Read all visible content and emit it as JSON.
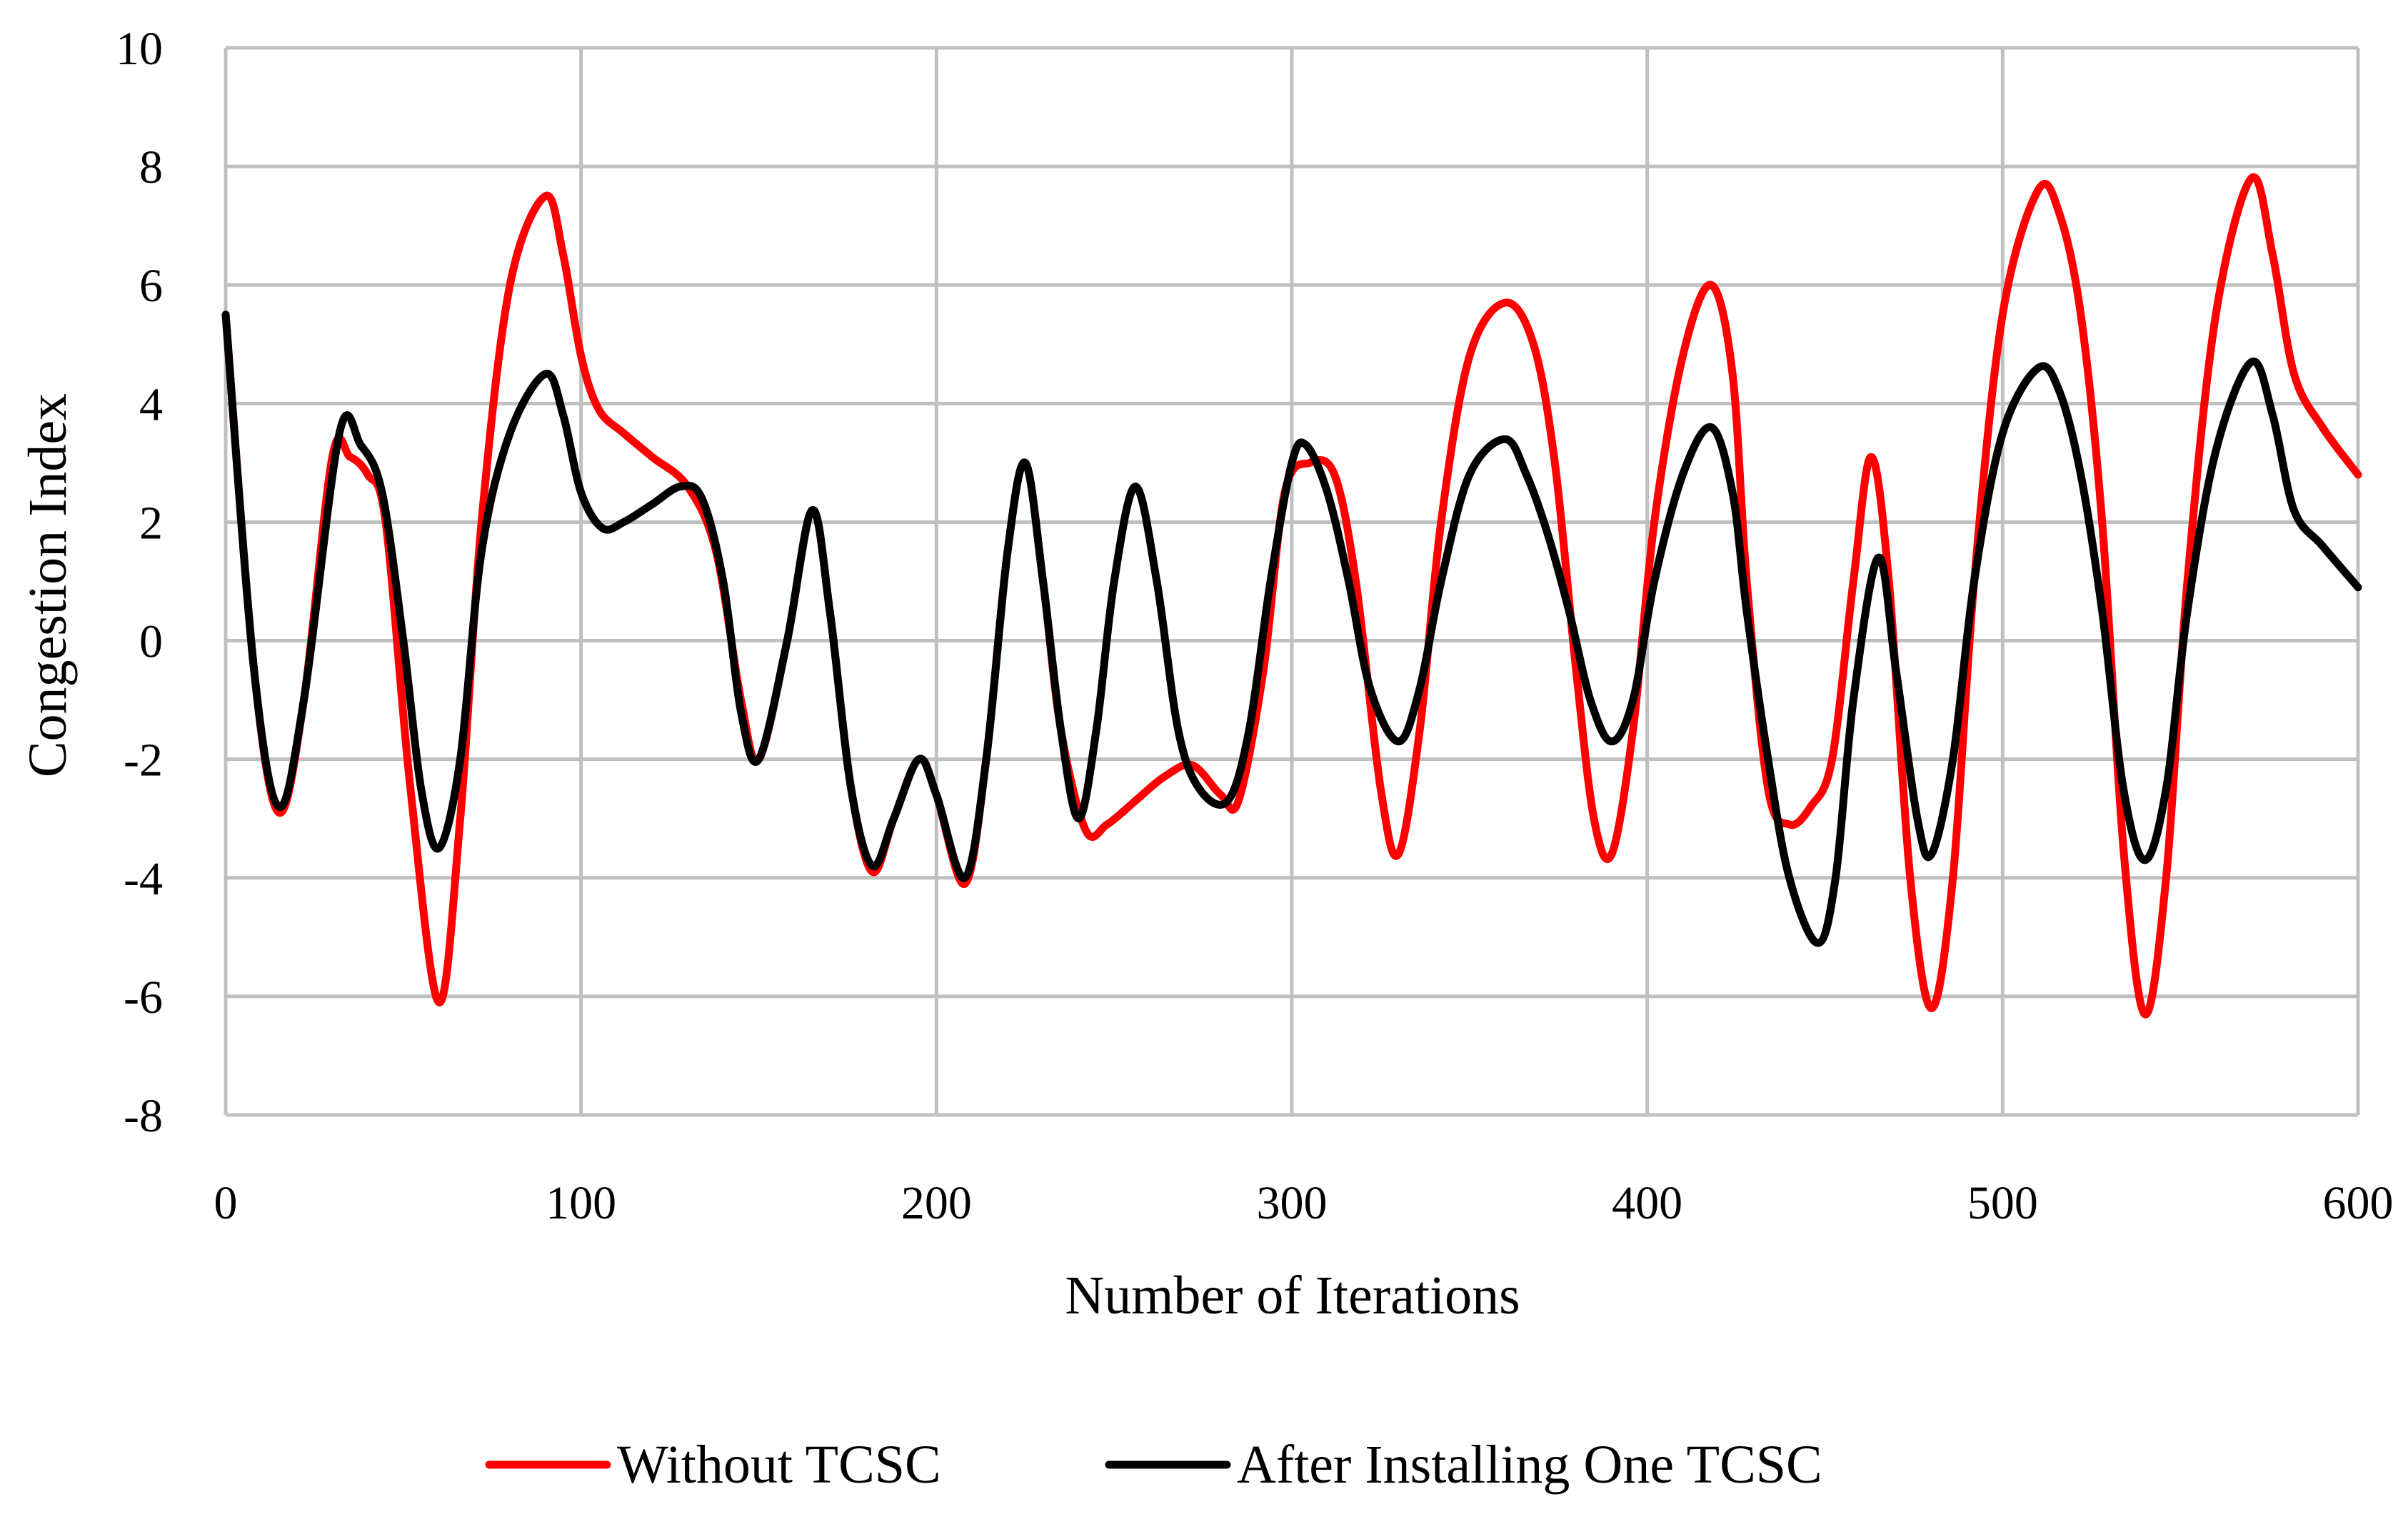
{
  "chart_data": {
    "type": "line",
    "title": "",
    "xlabel": "Number of Iterations",
    "ylabel": "Congestion Index",
    "xlim": [
      0,
      600
    ],
    "ylim": [
      -8,
      10
    ],
    "x_ticks": [
      0,
      100,
      200,
      300,
      400,
      500,
      600
    ],
    "y_ticks": [
      -8,
      -6,
      -4,
      -2,
      0,
      2,
      4,
      6,
      8,
      10
    ],
    "x_tick_labels": [
      "0",
      "100",
      "200",
      "300",
      "400",
      "500",
      "600"
    ],
    "y_tick_labels": [
      "-8",
      "-6",
      "-4",
      "-2",
      "0",
      "2",
      "4",
      "6",
      "8",
      "10"
    ],
    "grid": true,
    "legend_position": "bottom-center",
    "series": [
      {
        "name": "Without TCSC",
        "color": "#ff0000",
        "points": [
          [
            0,
            5.5
          ],
          [
            8,
            -0.5
          ],
          [
            15,
            -2.9
          ],
          [
            22,
            -1.0
          ],
          [
            30,
            3.1
          ],
          [
            35,
            3.1
          ],
          [
            40,
            2.8
          ],
          [
            45,
            2.0
          ],
          [
            52,
            -2.5
          ],
          [
            60,
            -6.1
          ],
          [
            66,
            -3.0
          ],
          [
            72,
            2.0
          ],
          [
            80,
            6.0
          ],
          [
            90,
            7.5
          ],
          [
            95,
            6.5
          ],
          [
            100,
            4.8
          ],
          [
            105,
            3.9
          ],
          [
            112,
            3.5
          ],
          [
            120,
            3.1
          ],
          [
            130,
            2.6
          ],
          [
            138,
            1.5
          ],
          [
            145,
            -1.0
          ],
          [
            150,
            -2.0
          ],
          [
            158,
            0.0
          ],
          [
            165,
            2.2
          ],
          [
            170,
            0.5
          ],
          [
            176,
            -2.5
          ],
          [
            182,
            -3.9
          ],
          [
            188,
            -3.0
          ],
          [
            195,
            -2.0
          ],
          [
            200,
            -2.6
          ],
          [
            208,
            -4.1
          ],
          [
            214,
            -2.0
          ],
          [
            220,
            1.5
          ],
          [
            225,
            3.0
          ],
          [
            230,
            1.0
          ],
          [
            235,
            -1.5
          ],
          [
            242,
            -3.2
          ],
          [
            248,
            -3.1
          ],
          [
            256,
            -2.7
          ],
          [
            264,
            -2.3
          ],
          [
            272,
            -2.1
          ],
          [
            280,
            -2.6
          ],
          [
            285,
            -2.7
          ],
          [
            292,
            -0.5
          ],
          [
            298,
            2.5
          ],
          [
            305,
            3.0
          ],
          [
            312,
            2.8
          ],
          [
            318,
            1.0
          ],
          [
            325,
            -2.5
          ],
          [
            330,
            -3.6
          ],
          [
            336,
            -1.5
          ],
          [
            342,
            2.0
          ],
          [
            350,
            4.8
          ],
          [
            360,
            5.7
          ],
          [
            368,
            5.0
          ],
          [
            374,
            3.0
          ],
          [
            380,
            -0.5
          ],
          [
            385,
            -3.0
          ],
          [
            390,
            -3.6
          ],
          [
            396,
            -1.5
          ],
          [
            402,
            2.0
          ],
          [
            410,
            4.8
          ],
          [
            418,
            6.0
          ],
          [
            424,
            4.5
          ],
          [
            428,
            1.0
          ],
          [
            434,
            -2.5
          ],
          [
            440,
            -3.1
          ],
          [
            446,
            -2.8
          ],
          [
            452,
            -2.0
          ],
          [
            458,
            1.0
          ],
          [
            463,
            3.1
          ],
          [
            468,
            1.0
          ],
          [
            474,
            -4.0
          ],
          [
            480,
            -6.2
          ],
          [
            486,
            -4.0
          ],
          [
            492,
            1.0
          ],
          [
            500,
            5.5
          ],
          [
            510,
            7.6
          ],
          [
            516,
            7.2
          ],
          [
            522,
            5.5
          ],
          [
            528,
            2.0
          ],
          [
            534,
            -3.5
          ],
          [
            540,
            -6.3
          ],
          [
            546,
            -4.0
          ],
          [
            552,
            1.0
          ],
          [
            560,
            5.5
          ],
          [
            570,
            7.8
          ],
          [
            576,
            6.5
          ],
          [
            582,
            4.5
          ],
          [
            590,
            3.6
          ],
          [
            600,
            2.8
          ]
        ]
      },
      {
        "name": "After Installing One TCSC",
        "color": "#000000",
        "points": [
          [
            0,
            5.5
          ],
          [
            8,
            -0.5
          ],
          [
            15,
            -2.8
          ],
          [
            22,
            -1.0
          ],
          [
            32,
            3.5
          ],
          [
            38,
            3.3
          ],
          [
            44,
            2.5
          ],
          [
            50,
            0.0
          ],
          [
            55,
            -2.5
          ],
          [
            60,
            -3.5
          ],
          [
            66,
            -2.0
          ],
          [
            72,
            1.5
          ],
          [
            80,
            3.5
          ],
          [
            90,
            4.5
          ],
          [
            95,
            3.8
          ],
          [
            100,
            2.5
          ],
          [
            106,
            1.9
          ],
          [
            112,
            2.0
          ],
          [
            120,
            2.3
          ],
          [
            128,
            2.6
          ],
          [
            134,
            2.4
          ],
          [
            140,
            1.0
          ],
          [
            145,
            -1.2
          ],
          [
            150,
            -2.0
          ],
          [
            158,
            0.0
          ],
          [
            165,
            2.2
          ],
          [
            170,
            0.5
          ],
          [
            176,
            -2.5
          ],
          [
            182,
            -3.8
          ],
          [
            188,
            -3.0
          ],
          [
            195,
            -2.0
          ],
          [
            200,
            -2.6
          ],
          [
            208,
            -4.0
          ],
          [
            214,
            -2.0
          ],
          [
            220,
            1.5
          ],
          [
            225,
            3.0
          ],
          [
            230,
            1.0
          ],
          [
            235,
            -1.5
          ],
          [
            240,
            -3.0
          ],
          [
            245,
            -1.5
          ],
          [
            250,
            1.0
          ],
          [
            256,
            2.6
          ],
          [
            262,
            1.0
          ],
          [
            268,
            -1.5
          ],
          [
            274,
            -2.5
          ],
          [
            282,
            -2.7
          ],
          [
            288,
            -1.5
          ],
          [
            294,
            1.0
          ],
          [
            300,
            3.0
          ],
          [
            304,
            3.3
          ],
          [
            310,
            2.5
          ],
          [
            316,
            1.0
          ],
          [
            322,
            -0.8
          ],
          [
            330,
            -1.7
          ],
          [
            336,
            -0.8
          ],
          [
            342,
            1.0
          ],
          [
            350,
            2.8
          ],
          [
            360,
            3.4
          ],
          [
            366,
            2.8
          ],
          [
            372,
            1.8
          ],
          [
            378,
            0.5
          ],
          [
            384,
            -1.0
          ],
          [
            390,
            -1.7
          ],
          [
            396,
            -1.0
          ],
          [
            402,
            1.0
          ],
          [
            410,
            2.8
          ],
          [
            418,
            3.6
          ],
          [
            424,
            2.5
          ],
          [
            428,
            0.5
          ],
          [
            434,
            -2.0
          ],
          [
            440,
            -4.0
          ],
          [
            448,
            -5.1
          ],
          [
            453,
            -4.0
          ],
          [
            458,
            -1.0
          ],
          [
            465,
            1.4
          ],
          [
            470,
            -0.5
          ],
          [
            476,
            -3.0
          ],
          [
            480,
            -3.6
          ],
          [
            486,
            -2.0
          ],
          [
            492,
            1.0
          ],
          [
            500,
            3.5
          ],
          [
            510,
            4.6
          ],
          [
            516,
            4.2
          ],
          [
            522,
            2.8
          ],
          [
            528,
            0.5
          ],
          [
            534,
            -2.5
          ],
          [
            540,
            -3.7
          ],
          [
            546,
            -2.5
          ],
          [
            552,
            0.5
          ],
          [
            560,
            3.2
          ],
          [
            570,
            4.7
          ],
          [
            576,
            3.8
          ],
          [
            582,
            2.2
          ],
          [
            590,
            1.6
          ],
          [
            600,
            0.9
          ]
        ]
      }
    ]
  }
}
